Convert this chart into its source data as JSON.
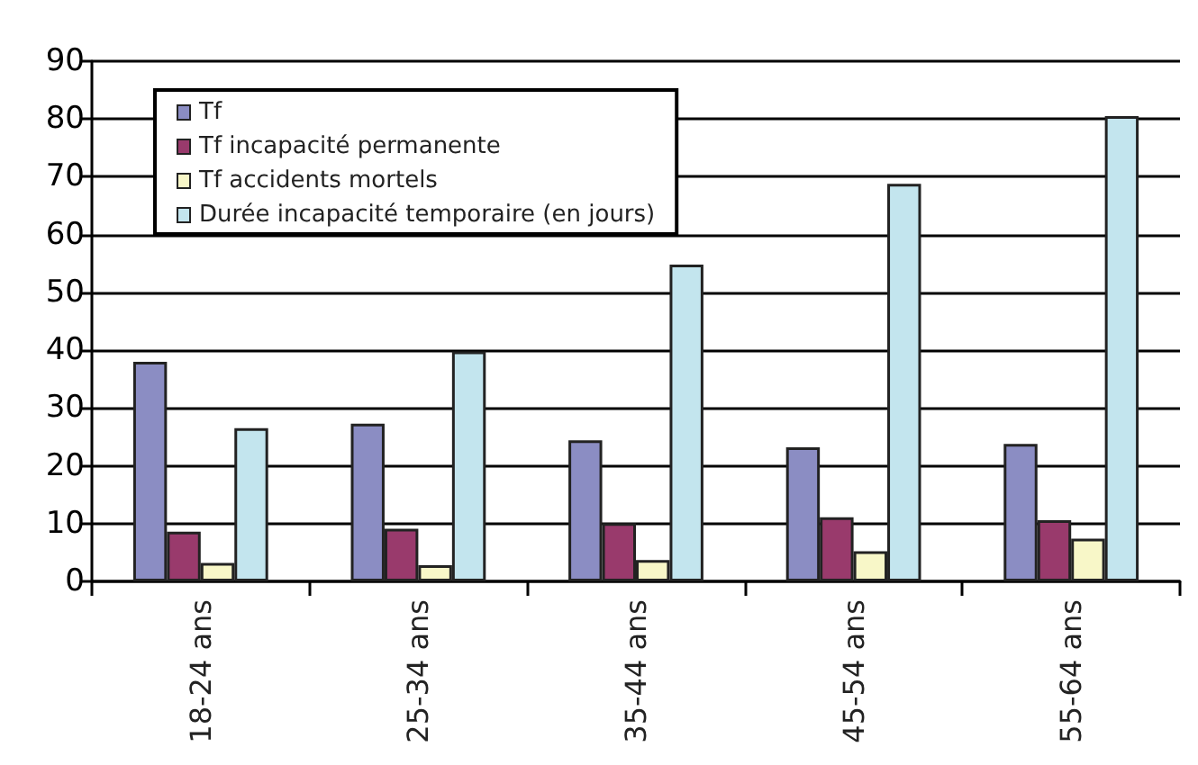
{
  "chart_data": {
    "type": "bar",
    "categories": [
      "18-24 ans",
      "25-34 ans",
      "35-44 ans",
      "45-54 ans",
      "55-64 ans"
    ],
    "series": [
      {
        "name": "Tf",
        "color": "#8b8dc3",
        "values": [
          38,
          27.3,
          24.4,
          23.2,
          23.8
        ]
      },
      {
        "name": "Tf incapacité permanente",
        "color": "#993a6c",
        "values": [
          8.6,
          9.1,
          10.1,
          11.1,
          10.6
        ]
      },
      {
        "name": "Tf accidents mortels",
        "color": "#f8f7c8",
        "values": [
          3.2,
          2.8,
          3.7,
          5.2,
          7.4
        ]
      },
      {
        "name": "Durée incapacité temporaire (en jours)",
        "color": "#c3e5ee",
        "values": [
          26.5,
          39.8,
          54.8,
          68.8,
          80.5
        ]
      }
    ],
    "ylim": [
      0,
      90
    ],
    "yticks": [
      0,
      10,
      20,
      30,
      40,
      50,
      60,
      70,
      80,
      90
    ],
    "grid": "y",
    "legend": "top left"
  }
}
